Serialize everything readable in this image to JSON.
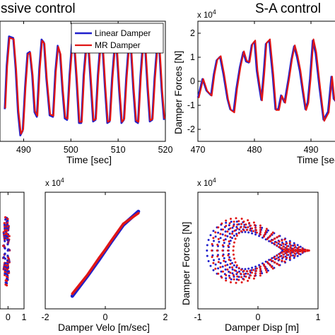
{
  "chart_data": [
    {
      "id": "passive-time",
      "type": "line",
      "title": "ssive control",
      "xlabel": "Time [sec]",
      "ylabel": "",
      "xticks": [
        "490",
        "500",
        "510",
        "520"
      ],
      "xlim": [
        485,
        520
      ],
      "ylim": [
        -2,
        2
      ],
      "legend": "top-right",
      "series": [
        {
          "name": "Linear Damper",
          "color": "#1f1fcc"
        },
        {
          "name": "MR Damper",
          "color": "#e01515"
        }
      ],
      "x": [
        486.0,
        486.4,
        486.9,
        487.8,
        488.3,
        488.8,
        489.3,
        489.8,
        490.3,
        490.8,
        491.3,
        491.8,
        492.3,
        492.8,
        493.3,
        493.8,
        494.3,
        494.8,
        495.5,
        496.2,
        496.7,
        497.2,
        497.7,
        498.2,
        498.7,
        499.2,
        499.7,
        500.2,
        500.7,
        501.2,
        501.7,
        502.2,
        502.7,
        503.2,
        503.7,
        504.2,
        504.7,
        505.2,
        505.7,
        506.2,
        506.7,
        507.2,
        507.7,
        508.2,
        508.7,
        509.2,
        509.7,
        510.2,
        510.7,
        511.2,
        511.7,
        512.2,
        512.7,
        513.2,
        513.7,
        514.2,
        514.7,
        515.2,
        515.7,
        516.2,
        516.7,
        517.2,
        517.7,
        518.2,
        518.7,
        519.2,
        519.7
      ],
      "y": [
        -0.9,
        0.5,
        1.45,
        1.4,
        0.4,
        -1.0,
        -1.75,
        -1.6,
        -0.2,
        0.9,
        0.95,
        0.2,
        -1.0,
        -1.15,
        0.4,
        1.35,
        1.25,
        0.1,
        -1.1,
        -1.15,
        0.3,
        1.15,
        0.9,
        -0.3,
        -1.2,
        -1.25,
        0.2,
        1.2,
        1.15,
        0.0,
        -1.35,
        -1.35,
        0.2,
        1.15,
        1.1,
        -0.1,
        -1.3,
        -1.25,
        0.2,
        1.2,
        1.1,
        -0.2,
        -1.35,
        -1.3,
        0.1,
        1.05,
        1.0,
        -0.3,
        -1.35,
        -1.25,
        0.1,
        1.15,
        1.05,
        -0.25,
        -1.3,
        -1.35,
        0.15,
        1.2,
        1.1,
        -0.2,
        -1.3,
        -1.25,
        0.1,
        1.1,
        1.05,
        -0.3,
        -1.25
      ]
    },
    {
      "id": "sa-time",
      "type": "line",
      "title": "S-A control",
      "xlabel": "Time [sec",
      "ylabel": "Damper Forces [N]",
      "y_multiplier": "x 10",
      "y_multiplier_exp": "4",
      "xticks": [
        "470",
        "480",
        "490"
      ],
      "yticks": [
        "2",
        "1",
        "0",
        "-1",
        "-2"
      ],
      "xlim": [
        470,
        495
      ],
      "ylim": [
        -2.5,
        2.5
      ],
      "x": [
        470.0,
        470.8,
        471.5,
        472.3,
        472.8,
        473.3,
        473.9,
        474.5,
        475.2,
        475.7,
        476.3,
        476.8,
        477.4,
        478.0,
        478.5,
        479.0,
        479.5,
        480.0,
        480.4,
        480.8,
        481.2,
        481.6,
        482.0,
        482.6,
        483.2,
        483.7,
        484.2,
        484.7,
        485.3,
        486.0,
        486.5,
        487.0,
        487.5,
        488.0,
        488.5,
        489.0,
        489.4,
        489.8,
        490.3,
        490.8,
        491.5,
        492.2,
        493.0,
        493.6,
        494.0,
        494.5,
        495.0
      ],
      "y": [
        -0.7,
        0.1,
        -0.4,
        -0.6,
        0.3,
        0.9,
        1.05,
        0.3,
        -0.75,
        -1.2,
        -1.3,
        -0.3,
        0.6,
        1.25,
        0.85,
        0.8,
        1.55,
        1.7,
        0.45,
        -0.2,
        -0.8,
        0.3,
        1.6,
        1.75,
        0.3,
        -1.2,
        -1.2,
        -0.6,
        -0.9,
        0.1,
        0.9,
        1.5,
        1.05,
        0.45,
        -0.4,
        -1.2,
        -0.9,
        0.1,
        1.75,
        1.2,
        -0.3,
        -1.65,
        -1.3,
        0.2,
        -0.75,
        -0.9,
        -0.5
      ]
    },
    {
      "id": "left-partial",
      "type": "scatter",
      "xticks": [
        "0",
        "1"
      ],
      "xlim": [
        -0.5,
        1
      ],
      "ylim": [
        -1,
        1
      ]
    },
    {
      "id": "force-velocity",
      "type": "scatter",
      "xlabel": "Damper Velo [m/sec]",
      "y_multiplier": "x 10",
      "y_multiplier_exp": "4",
      "xticks": [
        "-2",
        "0",
        "2"
      ],
      "xlim": [
        -2,
        2
      ],
      "ylim": [
        -1,
        1
      ],
      "series": [
        {
          "name": "Linear Damper",
          "color": "#1f1fcc",
          "x": [
            -1.1,
            -0.6,
            -0.2,
            0.0,
            0.2,
            0.6,
            1.1
          ],
          "y": [
            -0.78,
            -0.44,
            -0.15,
            0.0,
            0.15,
            0.44,
            0.67
          ]
        },
        {
          "name": "MR Damper",
          "color": "#e01515",
          "x": [
            -1.1,
            -0.6,
            -0.2,
            0.0,
            0.2,
            0.6,
            1.1
          ],
          "y": [
            -0.74,
            -0.42,
            -0.12,
            0.02,
            0.17,
            0.46,
            0.64
          ]
        }
      ]
    },
    {
      "id": "force-displacement",
      "type": "scatter",
      "xlabel": "Damper Disp [m]",
      "ylabel": "Damper Forces [N]",
      "y_multiplier": "x 10",
      "y_multiplier_exp": "4",
      "xticks": [
        "-1",
        "0",
        "1"
      ],
      "xlim": [
        -1,
        1
      ],
      "ylim": [
        -2,
        2
      ]
    }
  ]
}
